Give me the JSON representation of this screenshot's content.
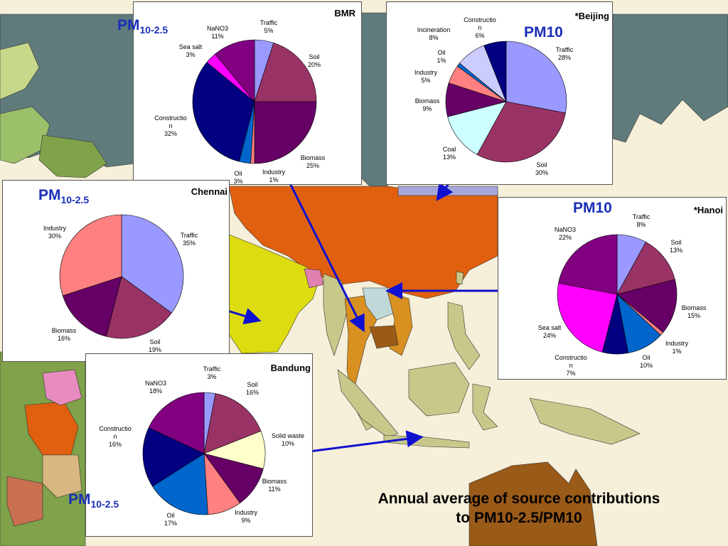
{
  "caption": {
    "line1": "Annual average of source contributions",
    "line2": "to PM10-2.5/PM10"
  },
  "colors": {
    "map_sea": "#f6efd9",
    "land_grey": "#5f7b7b",
    "china": "#e06010",
    "india": "#dcdc10",
    "southeast_asia": "#c8c88a",
    "arrow": "#1010d0",
    "pm_label": "#1a2fb8"
  },
  "chart_data": [
    {
      "id": "bmr",
      "type": "pie",
      "city": "BMR",
      "pm_main": "PM",
      "pm_sub": "10-2.5",
      "slices": [
        {
          "label": "Traffic",
          "pct_label": "5%",
          "value": 5,
          "color": "#9999ff"
        },
        {
          "label": "Soil",
          "pct_label": "20%",
          "value": 20,
          "color": "#993366"
        },
        {
          "label": "Biomass",
          "pct_label": "25%",
          "value": 25,
          "color": "#660066"
        },
        {
          "label": "Industry",
          "pct_label": "1%",
          "value": 1,
          "color": "#ff8080"
        },
        {
          "label": "Oil",
          "pct_label": "3%",
          "value": 3,
          "color": "#0066cc"
        },
        {
          "label": "Constructio\nn",
          "pct_label": "32%",
          "value": 32,
          "color": "#000080"
        },
        {
          "label": "Sea salt",
          "pct_label": "3%",
          "value": 3,
          "color": "#ff00ff"
        },
        {
          "label": "NaNO3",
          "pct_label": "11%",
          "value": 11,
          "color": "#800080"
        }
      ]
    },
    {
      "id": "beijing",
      "type": "pie",
      "city": "*Beijing",
      "pm_main": "PM10",
      "pm_sub": "",
      "slices": [
        {
          "label": "Traffic",
          "pct_label": "28%",
          "value": 28,
          "color": "#9999ff"
        },
        {
          "label": "Soil",
          "pct_label": "30%",
          "value": 30,
          "color": "#993366"
        },
        {
          "label": "Coal",
          "pct_label": "13%",
          "value": 13,
          "color": "#ccffff"
        },
        {
          "label": "Biomass",
          "pct_label": "9%",
          "value": 9,
          "color": "#660066"
        },
        {
          "label": "Industry",
          "pct_label": "5%",
          "value": 5,
          "color": "#ff8080"
        },
        {
          "label": "Oil",
          "pct_label": "1%",
          "value": 1,
          "color": "#0066cc"
        },
        {
          "label": "Incineration",
          "pct_label": "8%",
          "value": 8,
          "color": "#ccccff"
        },
        {
          "label": "Constructio\nn",
          "pct_label": "6%",
          "value": 6,
          "color": "#000080"
        }
      ]
    },
    {
      "id": "chennai",
      "type": "pie",
      "city": "Chennai",
      "pm_main": "PM",
      "pm_sub": "10-2.5",
      "slices": [
        {
          "label": "Traffic",
          "pct_label": "35%",
          "value": 35,
          "color": "#9999ff"
        },
        {
          "label": "Soil",
          "pct_label": "19%",
          "value": 19,
          "color": "#993366"
        },
        {
          "label": "Biomass",
          "pct_label": "16%",
          "value": 16,
          "color": "#660066"
        },
        {
          "label": "Industry",
          "pct_label": "30%",
          "value": 30,
          "color": "#ff8080"
        }
      ]
    },
    {
      "id": "hanoi",
      "type": "pie",
      "city": "*Hanoi",
      "pm_main": "PM10",
      "pm_sub": "",
      "slices": [
        {
          "label": "Traffic",
          "pct_label": "8%",
          "value": 8,
          "color": "#9999ff"
        },
        {
          "label": "Soil",
          "pct_label": "13%",
          "value": 13,
          "color": "#993366"
        },
        {
          "label": "Biomass",
          "pct_label": "15%",
          "value": 15,
          "color": "#660066"
        },
        {
          "label": "Industry",
          "pct_label": "1%",
          "value": 1,
          "color": "#ff8080"
        },
        {
          "label": "Oil",
          "pct_label": "10%",
          "value": 10,
          "color": "#0066cc"
        },
        {
          "label": "Constructio\nn",
          "pct_label": "7%",
          "value": 7,
          "color": "#000080"
        },
        {
          "label": "Sea salt",
          "pct_label": "24%",
          "value": 24,
          "color": "#ff00ff"
        },
        {
          "label": "NaNO3",
          "pct_label": "22%",
          "value": 22,
          "color": "#800080"
        }
      ]
    },
    {
      "id": "bandung",
      "type": "pie",
      "city": "Bandung",
      "pm_main": "PM",
      "pm_sub": "10-2.5",
      "slices": [
        {
          "label": "Traffic",
          "pct_label": "3%",
          "value": 3,
          "color": "#9999ff"
        },
        {
          "label": "Soil",
          "pct_label": "16%",
          "value": 16,
          "color": "#993366"
        },
        {
          "label": "Solid waste",
          "pct_label": "10%",
          "value": 10,
          "color": "#ffffcc"
        },
        {
          "label": "Biomass",
          "pct_label": "11%",
          "value": 11,
          "color": "#660066"
        },
        {
          "label": "Industry",
          "pct_label": "9%",
          "value": 9,
          "color": "#ff8080"
        },
        {
          "label": "Oil",
          "pct_label": "17%",
          "value": 17,
          "color": "#0066cc"
        },
        {
          "label": "Constructio\nn",
          "pct_label": "16%",
          "value": 16,
          "color": "#000080"
        },
        {
          "label": "NaNO3",
          "pct_label": "18%",
          "value": 18,
          "color": "#800080"
        }
      ]
    }
  ]
}
